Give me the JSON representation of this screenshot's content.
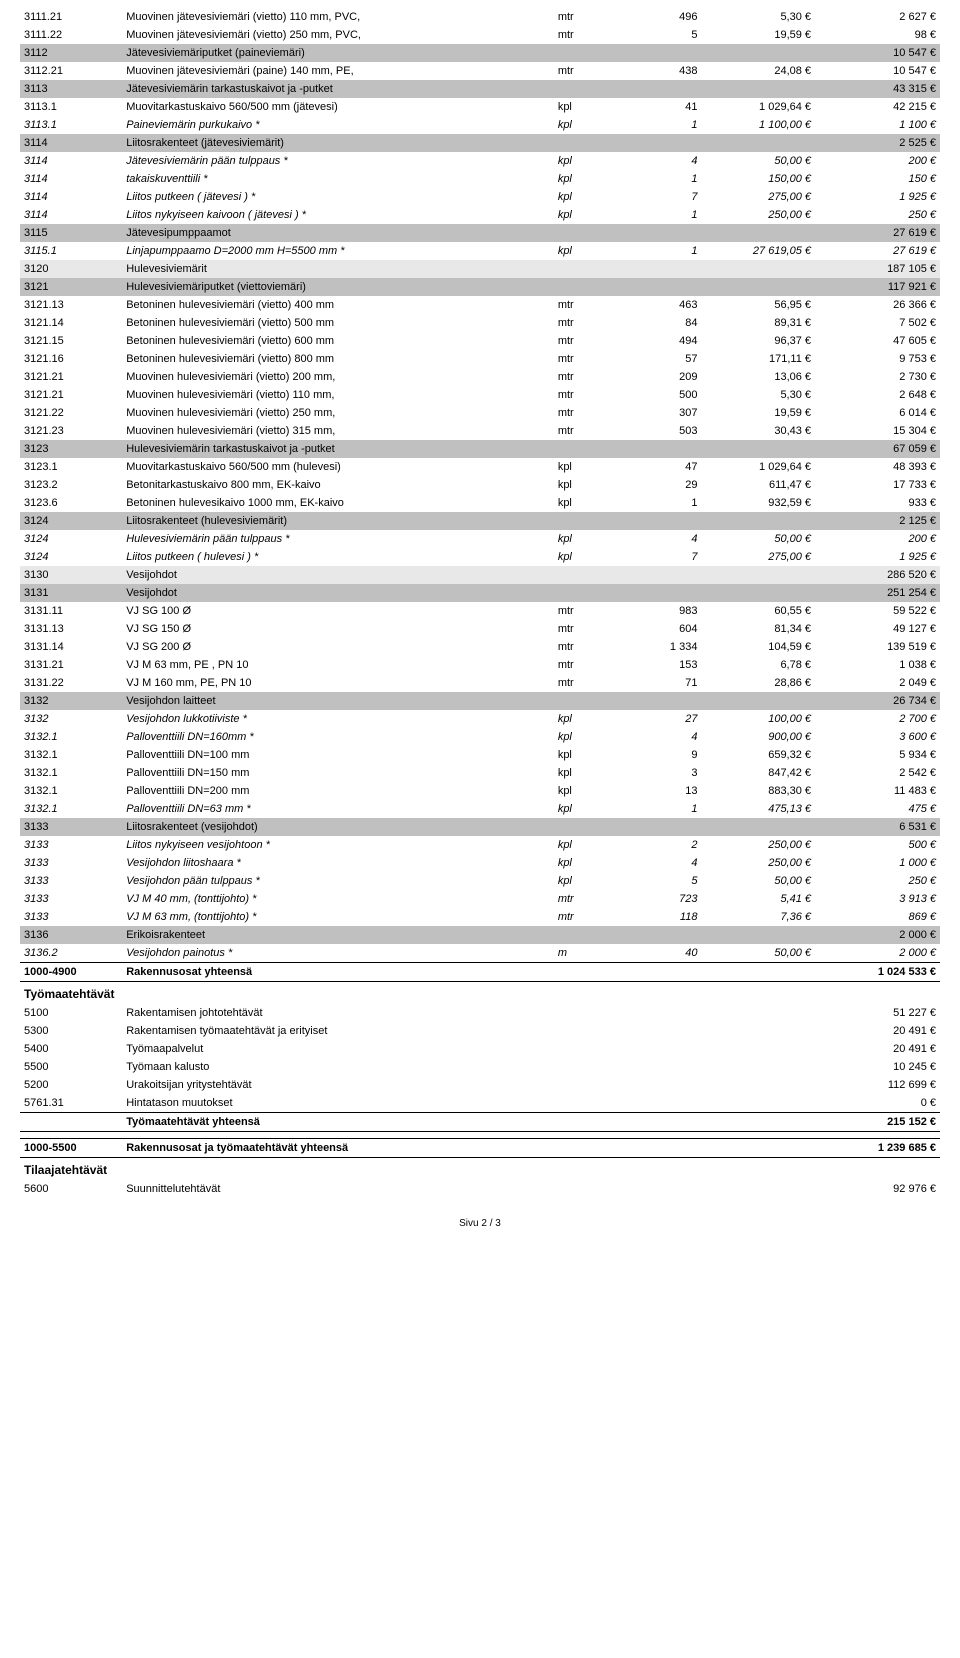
{
  "columns": {
    "code_width": 90,
    "desc_width": 380,
    "unit_width": 40,
    "qty_width": 90,
    "rate_width": 100,
    "amt_width": 110
  },
  "colors": {
    "header_bg": "#c0c0c0",
    "sub_bg": "#e8e8e8",
    "border": "#000000",
    "text": "#000000",
    "page_bg": "#ffffff"
  },
  "font": {
    "family": "Arial",
    "size_pt": 8,
    "section_size_pt": 9
  },
  "rows": [
    {
      "t": "line",
      "code": "3111.21",
      "desc": "Muovinen jätevesiviemäri (vietto) 110 mm, PVC,",
      "unit": "mtr",
      "qty": "496",
      "rate": "5,30 €",
      "amt": "2 627 €"
    },
    {
      "t": "line",
      "code": "3111.22",
      "desc": "Muovinen jätevesiviemäri (vietto) 250 mm, PVC,",
      "unit": "mtr",
      "qty": "5",
      "rate": "19,59 €",
      "amt": "98 €"
    },
    {
      "t": "header",
      "code": "3112",
      "desc": "Jätevesiviemäriputket (paineviemäri)",
      "amt": "10 547 €"
    },
    {
      "t": "line",
      "code": "3112.21",
      "desc": "Muovinen jätevesiviemäri (paine) 140 mm, PE,",
      "unit": "mtr",
      "qty": "438",
      "rate": "24,08 €",
      "amt": "10 547 €"
    },
    {
      "t": "header",
      "code": "3113",
      "desc": "Jätevesiviemärin tarkastuskaivot ja -putket",
      "amt": "43 315 €"
    },
    {
      "t": "line",
      "code": "3113.1",
      "desc": "Muovitarkastuskaivo 560/500 mm (jätevesi)",
      "unit": "kpl",
      "qty": "41",
      "rate": "1 029,64 €",
      "amt": "42 215 €"
    },
    {
      "t": "italic",
      "code": "3113.1",
      "desc": "Paineviemärin purkukaivo *",
      "unit": "kpl",
      "qty": "1",
      "rate": "1 100,00 €",
      "amt": "1 100 €"
    },
    {
      "t": "header",
      "code": "3114",
      "desc": "Liitosrakenteet (jätevesiviemärit)",
      "amt": "2 525 €"
    },
    {
      "t": "italic",
      "code": "3114",
      "desc": "Jätevesiviemärin pään tulppaus *",
      "unit": "kpl",
      "qty": "4",
      "rate": "50,00 €",
      "amt": "200 €"
    },
    {
      "t": "italic",
      "code": "3114",
      "desc": "takaiskuventtiili *",
      "unit": "kpl",
      "qty": "1",
      "rate": "150,00 €",
      "amt": "150 €"
    },
    {
      "t": "italic",
      "code": "3114",
      "desc": "Liitos putkeen ( jätevesi ) *",
      "unit": "kpl",
      "qty": "7",
      "rate": "275,00 €",
      "amt": "1 925 €"
    },
    {
      "t": "italic",
      "code": "3114",
      "desc": "Liitos nykyiseen kaivoon ( jätevesi ) *",
      "unit": "kpl",
      "qty": "1",
      "rate": "250,00 €",
      "amt": "250 €"
    },
    {
      "t": "header",
      "code": "3115",
      "desc": "Jätevesipumppaamot",
      "amt": "27 619 €"
    },
    {
      "t": "italic",
      "code": "3115.1",
      "desc": "Linjapumppaamo D=2000 mm H=5500 mm *",
      "unit": "kpl",
      "qty": "1",
      "rate": "27 619,05 €",
      "amt": "27 619 €"
    },
    {
      "t": "sub",
      "code": "3120",
      "desc": "Hulevesiviemärit",
      "amt": "187 105 €"
    },
    {
      "t": "header",
      "code": "3121",
      "desc": "Hulevesiviemäriputket (viettoviemäri)",
      "amt": "117 921 €"
    },
    {
      "t": "line",
      "code": "3121.13",
      "desc": "Betoninen hulevesiviemäri (vietto) 400 mm",
      "unit": "mtr",
      "qty": "463",
      "rate": "56,95 €",
      "amt": "26 366 €"
    },
    {
      "t": "line",
      "code": "3121.14",
      "desc": "Betoninen hulevesiviemäri (vietto) 500 mm",
      "unit": "mtr",
      "qty": "84",
      "rate": "89,31 €",
      "amt": "7 502 €"
    },
    {
      "t": "line",
      "code": "3121.15",
      "desc": "Betoninen hulevesiviemäri (vietto) 600 mm",
      "unit": "mtr",
      "qty": "494",
      "rate": "96,37 €",
      "amt": "47 605 €"
    },
    {
      "t": "line",
      "code": "3121.16",
      "desc": "Betoninen hulevesiviemäri (vietto) 800 mm",
      "unit": "mtr",
      "qty": "57",
      "rate": "171,11 €",
      "amt": "9 753 €"
    },
    {
      "t": "line",
      "code": "3121.21",
      "desc": "Muovinen hulevesiviemäri (vietto) 200 mm,",
      "unit": "mtr",
      "qty": "209",
      "rate": "13,06 €",
      "amt": "2 730 €"
    },
    {
      "t": "line",
      "code": "3121.21",
      "desc": "Muovinen hulevesiviemäri (vietto) 110 mm,",
      "unit": "mtr",
      "qty": "500",
      "rate": "5,30 €",
      "amt": "2 648 €"
    },
    {
      "t": "line",
      "code": "3121.22",
      "desc": "Muovinen hulevesiviemäri (vietto) 250 mm,",
      "unit": "mtr",
      "qty": "307",
      "rate": "19,59 €",
      "amt": "6 014 €"
    },
    {
      "t": "line",
      "code": "3121.23",
      "desc": "Muovinen hulevesiviemäri (vietto) 315 mm,",
      "unit": "mtr",
      "qty": "503",
      "rate": "30,43 €",
      "amt": "15 304 €"
    },
    {
      "t": "header",
      "code": "3123",
      "desc": "Hulevesiviemärin tarkastuskaivot ja -putket",
      "amt": "67 059 €"
    },
    {
      "t": "line",
      "code": "3123.1",
      "desc": "Muovitarkastuskaivo 560/500 mm (hulevesi)",
      "unit": "kpl",
      "qty": "47",
      "rate": "1 029,64 €",
      "amt": "48 393 €"
    },
    {
      "t": "line",
      "code": "3123.2",
      "desc": "Betonitarkastuskaivo 800 mm, EK-kaivo",
      "unit": "kpl",
      "qty": "29",
      "rate": "611,47 €",
      "amt": "17 733 €"
    },
    {
      "t": "line",
      "code": "3123.6",
      "desc": "Betoninen hulevesikaivo 1000 mm, EK-kaivo",
      "unit": "kpl",
      "qty": "1",
      "rate": "932,59 €",
      "amt": "933 €"
    },
    {
      "t": "header",
      "code": "3124",
      "desc": "Liitosrakenteet (hulevesiviemärit)",
      "amt": "2 125 €"
    },
    {
      "t": "italic",
      "code": "3124",
      "desc": "Hulevesiviemärin pään tulppaus *",
      "unit": "kpl",
      "qty": "4",
      "rate": "50,00 €",
      "amt": "200 €"
    },
    {
      "t": "italic",
      "code": "3124",
      "desc": "Liitos putkeen ( hulevesi ) *",
      "unit": "kpl",
      "qty": "7",
      "rate": "275,00 €",
      "amt": "1 925 €"
    },
    {
      "t": "sub",
      "code": "3130",
      "desc": "Vesijohdot",
      "amt": "286 520 €"
    },
    {
      "t": "header",
      "code": "3131",
      "desc": "Vesijohdot",
      "amt": "251 254 €"
    },
    {
      "t": "line",
      "code": "3131.11",
      "desc": "VJ SG 100 Ø",
      "unit": "mtr",
      "qty": "983",
      "rate": "60,55 €",
      "amt": "59 522 €"
    },
    {
      "t": "line",
      "code": "3131.13",
      "desc": "VJ SG 150 Ø",
      "unit": "mtr",
      "qty": "604",
      "rate": "81,34 €",
      "amt": "49 127 €"
    },
    {
      "t": "line",
      "code": "3131.14",
      "desc": "VJ SG 200 Ø",
      "unit": "mtr",
      "qty": "1 334",
      "rate": "104,59 €",
      "amt": "139 519 €"
    },
    {
      "t": "line",
      "code": "3131.21",
      "desc": "VJ M 63 mm, PE , PN 10",
      "unit": "mtr",
      "qty": "153",
      "rate": "6,78 €",
      "amt": "1 038 €"
    },
    {
      "t": "line",
      "code": "3131.22",
      "desc": "VJ M 160 mm, PE, PN 10",
      "unit": "mtr",
      "qty": "71",
      "rate": "28,86 €",
      "amt": "2 049 €"
    },
    {
      "t": "header",
      "code": "3132",
      "desc": "Vesijohdon laitteet",
      "amt": "26 734 €"
    },
    {
      "t": "italic",
      "code": "3132",
      "desc": "Vesijohdon lukkotiiviste *",
      "unit": "kpl",
      "qty": "27",
      "rate": "100,00 €",
      "amt": "2 700 €"
    },
    {
      "t": "italic",
      "code": "3132.1",
      "desc": "Palloventtiili DN=160mm *",
      "unit": "kpl",
      "qty": "4",
      "rate": "900,00 €",
      "amt": "3 600 €"
    },
    {
      "t": "line",
      "code": "3132.1",
      "desc": "Palloventtiili DN=100 mm",
      "unit": "kpl",
      "qty": "9",
      "rate": "659,32 €",
      "amt": "5 934 €"
    },
    {
      "t": "line",
      "code": "3132.1",
      "desc": "Palloventtiili DN=150 mm",
      "unit": "kpl",
      "qty": "3",
      "rate": "847,42 €",
      "amt": "2 542 €"
    },
    {
      "t": "line",
      "code": "3132.1",
      "desc": "Palloventtiili DN=200 mm",
      "unit": "kpl",
      "qty": "13",
      "rate": "883,30 €",
      "amt": "11 483 €"
    },
    {
      "t": "italic",
      "code": "3132.1",
      "desc": "Palloventtiili DN=63 mm *",
      "unit": "kpl",
      "qty": "1",
      "rate": "475,13 €",
      "amt": "475 €"
    },
    {
      "t": "header",
      "code": "3133",
      "desc": "Liitosrakenteet (vesijohdot)",
      "amt": "6 531 €"
    },
    {
      "t": "italic",
      "code": "3133",
      "desc": "Liitos nykyiseen vesijohtoon *",
      "unit": "kpl",
      "qty": "2",
      "rate": "250,00 €",
      "amt": "500 €"
    },
    {
      "t": "italic",
      "code": "3133",
      "desc": "Vesijohdon liitoshaara *",
      "unit": "kpl",
      "qty": "4",
      "rate": "250,00 €",
      "amt": "1 000 €"
    },
    {
      "t": "italic",
      "code": "3133",
      "desc": "Vesijohdon pään tulppaus *",
      "unit": "kpl",
      "qty": "5",
      "rate": "50,00 €",
      "amt": "250 €"
    },
    {
      "t": "italic",
      "code": "3133",
      "desc": "VJ M 40 mm, (tonttijohto) *",
      "unit": "mtr",
      "qty": "723",
      "rate": "5,41 €",
      "amt": "3 913 €"
    },
    {
      "t": "italic",
      "code": "3133",
      "desc": "VJ M 63 mm, (tonttijohto) *",
      "unit": "mtr",
      "qty": "118",
      "rate": "7,36 €",
      "amt": "869 €"
    },
    {
      "t": "header",
      "code": "3136",
      "desc": "Erikoisrakenteet",
      "amt": "2 000 €"
    },
    {
      "t": "italic",
      "code": "3136.2",
      "desc": "Vesijohdon painotus *",
      "unit": "m",
      "qty": "40",
      "rate": "50,00 €",
      "amt": "2 000 €"
    },
    {
      "t": "sum-both",
      "code": "1000-4900",
      "desc": "Rakennusosat yhteensä",
      "amt": "1 024 533 €"
    },
    {
      "t": "section",
      "desc": "Työmaatehtävät"
    },
    {
      "t": "line",
      "code": "5100",
      "desc": "Rakentamisen johtotehtävät",
      "amt": "51 227 €"
    },
    {
      "t": "line",
      "code": "5300",
      "desc": "Rakentamisen työmaatehtävät ja erityiset",
      "amt": "20 491 €"
    },
    {
      "t": "line",
      "code": "5400",
      "desc": "Työmaapalvelut",
      "amt": "20 491 €"
    },
    {
      "t": "line",
      "code": "5500",
      "desc": "Työmaan kalusto",
      "amt": "10 245 €"
    },
    {
      "t": "line",
      "code": "5200",
      "desc": "Urakoitsijan yritystehtävät",
      "amt": "112 699 €"
    },
    {
      "t": "line",
      "code": "5761.31",
      "desc": "Hintatason muutokset",
      "amt": "0 €"
    },
    {
      "t": "sum-both",
      "code": "",
      "desc": "Työmaatehtävät yhteensä",
      "amt": "215 152 €"
    },
    {
      "t": "spacer"
    },
    {
      "t": "sum-both",
      "code": "1000-5500",
      "desc": "Rakennusosat ja työmaatehtävät yhteensä",
      "amt": "1 239 685 €"
    },
    {
      "t": "section",
      "desc": "Tilaajatehtävät"
    },
    {
      "t": "line",
      "code": "5600",
      "desc": "Suunnittelutehtävät",
      "amt": "92 976 €"
    }
  ],
  "footer": "Sivu 2 / 3"
}
